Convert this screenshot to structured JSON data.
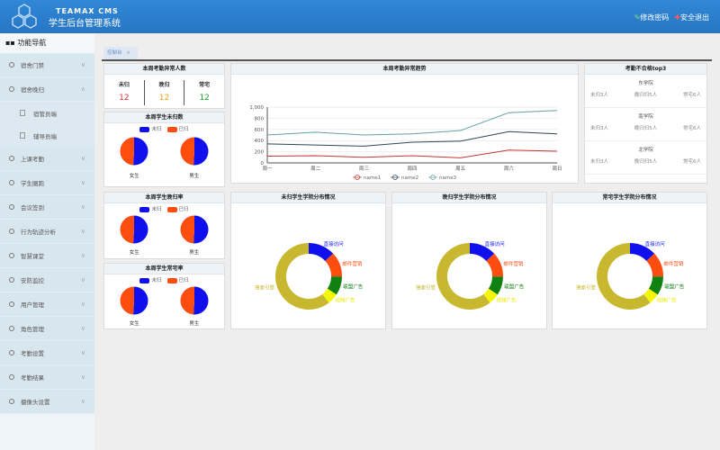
{
  "header": {
    "brand": "TEAMAX CMS",
    "title": "学生后台管理系统",
    "change_password": "修改密码",
    "logout": "安全退出"
  },
  "sidebar": {
    "title": "功能导航",
    "items": [
      {
        "label": "宿舍门禁",
        "chev": "∨"
      },
      {
        "label": "宿舍晚归",
        "chev": "∧"
      },
      {
        "label": "上课考勤",
        "chev": "∨"
      },
      {
        "label": "学生圈跑",
        "chev": "∨"
      },
      {
        "label": "会议签到",
        "chev": "∨"
      },
      {
        "label": "行为轨迹分析",
        "chev": "∨"
      },
      {
        "label": "智慧课堂",
        "chev": "∨"
      },
      {
        "label": "安防监控",
        "chev": "∨"
      },
      {
        "label": "用户管理",
        "chev": "∨"
      },
      {
        "label": "角色管理",
        "chev": "∨"
      },
      {
        "label": "考勤设置",
        "chev": "∨"
      },
      {
        "label": "考勤结果",
        "chev": "∨"
      },
      {
        "label": "摄像头设置",
        "chev": "∨"
      }
    ],
    "subitems": [
      {
        "label": "宿管员端"
      },
      {
        "label": "辅导员端"
      }
    ]
  },
  "tabs": [
    {
      "label": "控制台",
      "close": "×"
    }
  ],
  "abnormal": {
    "title": "本周考勤异常人数",
    "stats": [
      {
        "label": "未归",
        "value": "12",
        "color": "#e03030"
      },
      {
        "label": "晚归",
        "value": "12",
        "color": "#f0a020"
      },
      {
        "label": "常宅",
        "value": "12",
        "color": "#20a020"
      }
    ]
  },
  "legend": {
    "a": "未归",
    "b": "已归",
    "color_a": "#1010ee",
    "color_b": "#ff4d10"
  },
  "pie_panels": [
    {
      "title": "本周学生未归数",
      "left": "女生",
      "right": "男生",
      "fraction_a": [
        0.51,
        0.51
      ]
    },
    {
      "title": "本周学生晚归率",
      "left": "女生",
      "right": "男生",
      "fraction_a": [
        0.51,
        0.51
      ]
    },
    {
      "title": "本周学生常宅率",
      "left": "女生",
      "right": "男生",
      "fraction_a": [
        0.51,
        0.51
      ]
    }
  ],
  "top3": {
    "title": "考勤不合格top3",
    "colleges": [
      {
        "name": "东学院",
        "items": [
          "未归3人",
          "晚归归5人",
          "常宅6人"
        ]
      },
      {
        "name": "南学院",
        "items": [
          "未归3人",
          "晚归归5人",
          "常宅6人"
        ]
      },
      {
        "name": "北学院",
        "items": [
          "未归3人",
          "晚归归5人",
          "常宅6人"
        ]
      }
    ]
  },
  "chart_data": [
    {
      "type": "line",
      "title": "本周考勤异常趋势",
      "categories": [
        "周一",
        "周二",
        "周三",
        "周四",
        "周五",
        "周六",
        "周日"
      ],
      "ylim": [
        0,
        1000
      ],
      "yticks": [
        "0",
        "200",
        "400",
        "600",
        "800",
        "1,000"
      ],
      "series": [
        {
          "name": "name1",
          "color": "#c23531",
          "values": [
            120,
            130,
            100,
            130,
            90,
            230,
            210
          ]
        },
        {
          "name": "name2",
          "color": "#2f4554",
          "values": [
            340,
            320,
            300,
            370,
            390,
            560,
            520
          ]
        },
        {
          "name": "name3",
          "color": "#61a0a8",
          "values": [
            500,
            550,
            500,
            520,
            580,
            900,
            940
          ]
        }
      ]
    },
    {
      "type": "pie",
      "title": "未归学生学院分布情况",
      "labels": [
        "直接访问",
        "邮件营销",
        "联盟广告",
        "视频广告",
        "搜索引擎"
      ],
      "values": [
        335,
        310,
        234,
        135,
        1548
      ],
      "colors": [
        "#1010ee",
        "#ff4d10",
        "#108010",
        "#f5f50a",
        "#c8b830"
      ]
    },
    {
      "type": "pie",
      "title": "晚归学生学院分布情况",
      "labels": [
        "直接访问",
        "邮件营销",
        "联盟广告",
        "视频广告",
        "搜索引擎"
      ],
      "values": [
        335,
        310,
        234,
        135,
        1548
      ],
      "colors": [
        "#1010ee",
        "#ff4d10",
        "#108010",
        "#f5f50a",
        "#c8b830"
      ]
    },
    {
      "type": "pie",
      "title": "常宅学生学院分布情况",
      "labels": [
        "直接访问",
        "邮件营销",
        "联盟广告",
        "视频广告",
        "搜索引擎"
      ],
      "values": [
        335,
        310,
        234,
        135,
        1548
      ],
      "colors": [
        "#1010ee",
        "#ff4d10",
        "#108010",
        "#f5f50a",
        "#c8b830"
      ]
    }
  ]
}
